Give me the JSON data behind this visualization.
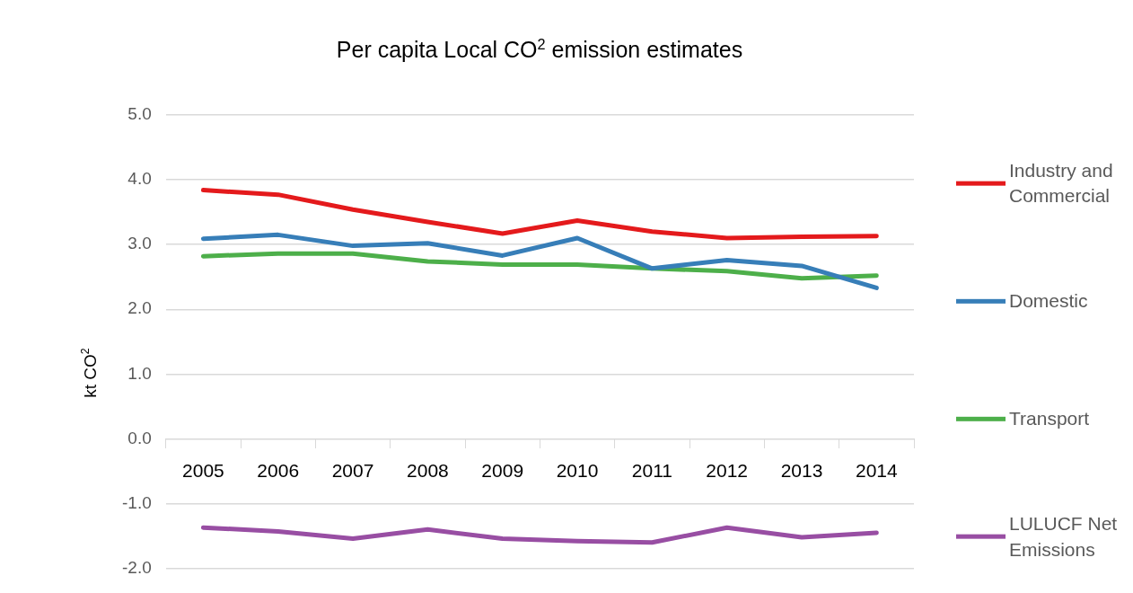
{
  "chart_data": {
    "type": "line",
    "title": "Per capita Local CO$^{2}$ emission estimates",
    "ylabel": "kt CO$^{2}$",
    "categories": [
      "2005",
      "2006",
      "2007",
      "2008",
      "2009",
      "2010",
      "2011",
      "2012",
      "2013",
      "2014"
    ],
    "series": [
      {
        "name": "Industry and Commercial",
        "color": "#e41a1c",
        "values": [
          3.84,
          3.77,
          3.54,
          3.35,
          3.17,
          3.37,
          3.2,
          3.1,
          3.12,
          3.13
        ]
      },
      {
        "name": "Domestic",
        "color": "#377eb8",
        "values": [
          3.09,
          3.15,
          2.98,
          3.02,
          2.83,
          3.1,
          2.63,
          2.76,
          2.67,
          2.33
        ]
      },
      {
        "name": "Transport",
        "color": "#4daf4a",
        "values": [
          2.82,
          2.86,
          2.86,
          2.74,
          2.69,
          2.69,
          2.63,
          2.59,
          2.48,
          2.52
        ]
      },
      {
        "name": "LULUCF Net Emissions",
        "color": "#984ea3",
        "values": [
          -1.37,
          -1.43,
          -1.54,
          -1.4,
          -1.54,
          -1.58,
          -1.6,
          -1.37,
          -1.52,
          -1.45
        ]
      }
    ],
    "ylim": [
      -2,
      5
    ],
    "yticks": [
      {
        "value": -2,
        "label": "-2.0"
      },
      {
        "value": -1,
        "label": "-1.0"
      },
      {
        "value": 0,
        "label": "0.0"
      },
      {
        "value": 1,
        "label": "1.0"
      },
      {
        "value": 2,
        "label": "2.0"
      },
      {
        "value": 3,
        "label": "3.0"
      },
      {
        "value": 4,
        "label": "4.0"
      },
      {
        "value": 5,
        "label": "5.0"
      }
    ],
    "grid": "y",
    "legend": "right",
    "marker": "none",
    "line_style": "solid"
  }
}
